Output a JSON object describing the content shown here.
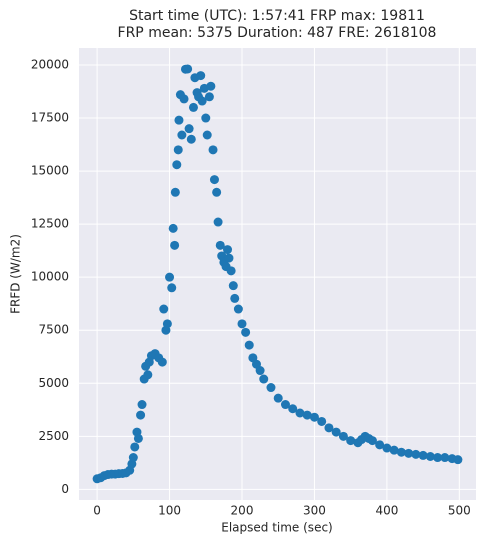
{
  "chart_data": {
    "type": "scatter",
    "title": [
      "Start time (UTC): 1:57:41 FRP max: 19811",
      "FRP mean: 5375 Duration: 487 FRE: 2618108"
    ],
    "x_label": "Elapsed time (sec)",
    "y_label": "FRFD (W/m2)",
    "color": "#1f77b4",
    "grid": true,
    "xlim": [
      -25,
      523
    ],
    "ylim": [
      -500,
      20800
    ],
    "xticks": [
      0,
      100,
      200,
      300,
      400,
      500
    ],
    "yticks": [
      0,
      2500,
      5000,
      7500,
      10000,
      12500,
      15000,
      17500,
      20000
    ],
    "x": [
      0,
      5,
      10,
      15,
      20,
      25,
      30,
      35,
      40,
      45,
      48,
      50,
      52,
      55,
      57,
      60,
      62,
      65,
      67,
      70,
      72,
      75,
      80,
      85,
      90,
      92,
      95,
      97,
      100,
      103,
      105,
      107,
      108,
      110,
      112,
      113,
      115,
      117,
      120,
      122,
      125,
      127,
      130,
      133,
      135,
      138,
      140,
      143,
      145,
      148,
      150,
      152,
      155,
      157,
      160,
      162,
      165,
      167,
      170,
      172,
      175,
      178,
      180,
      182,
      185,
      188,
      190,
      195,
      200,
      205,
      210,
      215,
      220,
      225,
      230,
      240,
      250,
      260,
      270,
      280,
      290,
      300,
      310,
      320,
      330,
      340,
      350,
      360,
      365,
      370,
      375,
      380,
      390,
      400,
      410,
      420,
      430,
      440,
      450,
      460,
      470,
      480,
      490,
      498
    ],
    "values": [
      500,
      550,
      650,
      700,
      720,
      720,
      740,
      750,
      780,
      900,
      1200,
      1500,
      2000,
      2700,
      2400,
      3500,
      4000,
      5200,
      5800,
      5400,
      6000,
      6300,
      6400,
      6200,
      6000,
      8500,
      7500,
      7800,
      10000,
      9500,
      12300,
      11500,
      14000,
      15300,
      16000,
      17400,
      18600,
      16700,
      18400,
      19800,
      19811,
      17000,
      16500,
      18000,
      19400,
      18700,
      18500,
      19500,
      18300,
      18900,
      17500,
      16700,
      18500,
      19000,
      16000,
      14600,
      14000,
      12600,
      11500,
      11000,
      10700,
      10500,
      11300,
      10900,
      10300,
      9600,
      9000,
      8500,
      7800,
      7400,
      6800,
      6200,
      5900,
      5600,
      5200,
      4800,
      4300,
      4000,
      3800,
      3600,
      3500,
      3400,
      3200,
      2900,
      2700,
      2500,
      2300,
      2200,
      2350,
      2500,
      2400,
      2300,
      2100,
      1950,
      1850,
      1750,
      1700,
      1650,
      1600,
      1550,
      1500,
      1500,
      1450,
      1400
    ]
  }
}
